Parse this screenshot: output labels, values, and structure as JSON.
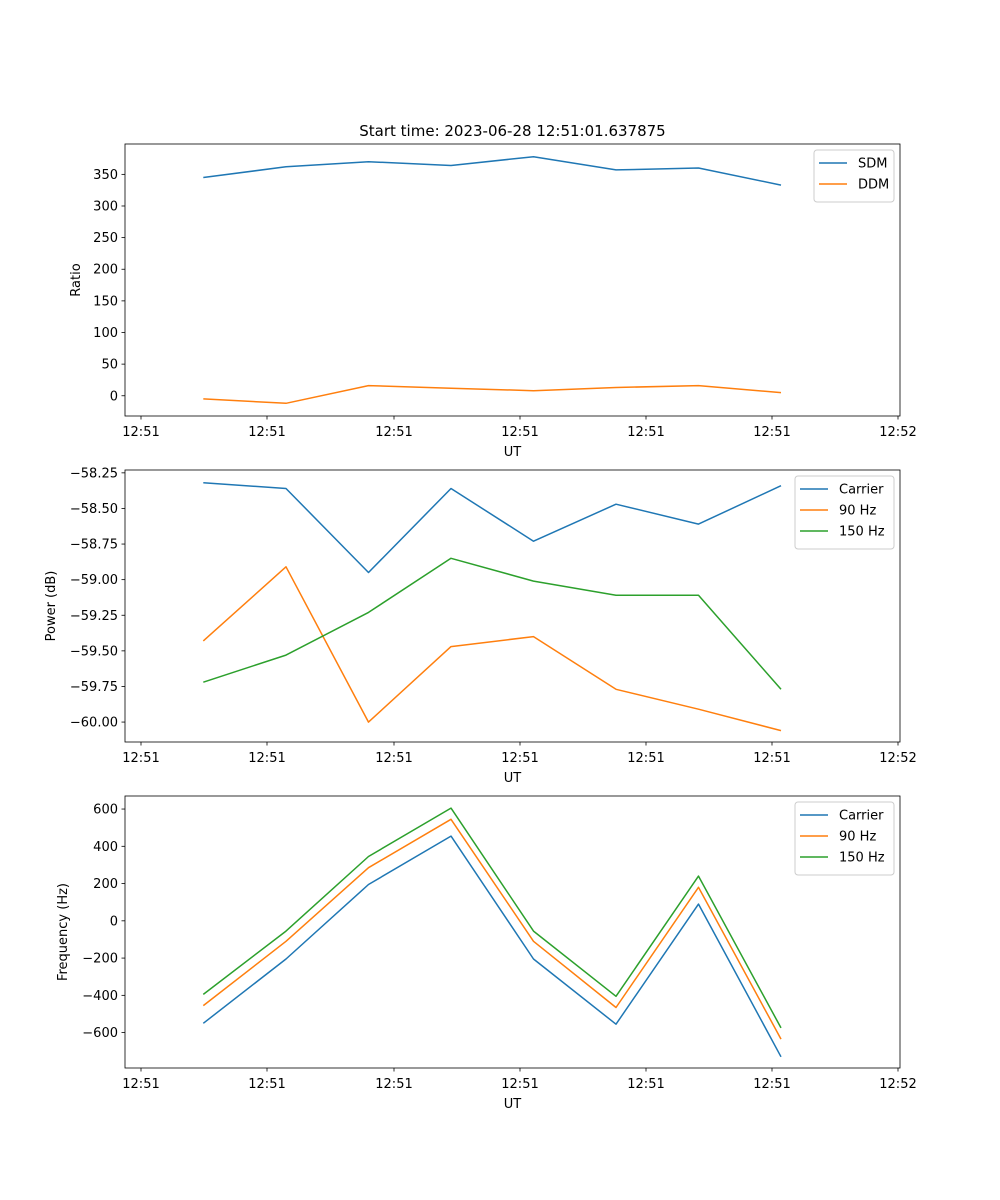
{
  "figure": {
    "title": "Start time: 2023-06-28 12:51:01.637875"
  },
  "chart_data": [
    {
      "type": "line",
      "xlabel": "UT",
      "ylabel": "Ratio",
      "x_tick_labels": [
        "12:51",
        "12:51",
        "12:51",
        "12:51",
        "12:51",
        "12:51",
        "12:52"
      ],
      "y_ticks": [
        0,
        50,
        100,
        150,
        200,
        250,
        300,
        350
      ],
      "y_tick_labels": [
        "0",
        "50",
        "100",
        "150",
        "200",
        "250",
        "300",
        "350"
      ],
      "ylim": [
        -32,
        398
      ],
      "legend_position": "top-right",
      "grid": false,
      "series": [
        {
          "name": "SDM",
          "color": "#1f77b4",
          "values": [
            345,
            362,
            370,
            364,
            378,
            357,
            360,
            333
          ]
        },
        {
          "name": "DDM",
          "color": "#ff7f0e",
          "values": [
            -5,
            -12,
            16,
            12,
            8,
            13,
            16,
            5
          ]
        }
      ]
    },
    {
      "type": "line",
      "xlabel": "UT",
      "ylabel": "Power (dB)",
      "x_tick_labels": [
        "12:51",
        "12:51",
        "12:51",
        "12:51",
        "12:51",
        "12:51",
        "12:52"
      ],
      "y_ticks": [
        -60.0,
        -59.75,
        -59.5,
        -59.25,
        -59.0,
        -58.75,
        -58.5,
        -58.25
      ],
      "y_tick_labels": [
        "−60.00",
        "−59.75",
        "−59.50",
        "−59.25",
        "−59.00",
        "−58.75",
        "−58.50",
        "−58.25"
      ],
      "ylim": [
        -60.14,
        -58.23
      ],
      "legend_position": "top-right",
      "grid": false,
      "series": [
        {
          "name": "Carrier",
          "color": "#1f77b4",
          "values": [
            -58.32,
            -58.36,
            -58.95,
            -58.36,
            -58.73,
            -58.47,
            -58.61,
            -58.34
          ]
        },
        {
          "name": "90 Hz",
          "color": "#ff7f0e",
          "values": [
            -59.43,
            -58.91,
            -60.0,
            -59.47,
            -59.4,
            -59.77,
            -59.91,
            -60.06
          ]
        },
        {
          "name": "150 Hz",
          "color": "#2ca02c",
          "values": [
            -59.72,
            -59.53,
            -59.23,
            -58.85,
            -59.01,
            -59.11,
            -59.11,
            -59.77
          ]
        }
      ]
    },
    {
      "type": "line",
      "xlabel": "UT",
      "ylabel": "Frequency (Hz)",
      "x_tick_labels": [
        "12:51",
        "12:51",
        "12:51",
        "12:51",
        "12:51",
        "12:51",
        "12:52"
      ],
      "y_ticks": [
        -600,
        -400,
        -200,
        0,
        200,
        400,
        600
      ],
      "y_tick_labels": [
        "−600",
        "−400",
        "−200",
        "0",
        "200",
        "400",
        "600"
      ],
      "ylim": [
        -790,
        670
      ],
      "legend_position": "top-right",
      "grid": false,
      "series": [
        {
          "name": "Carrier",
          "color": "#1f77b4",
          "values": [
            -550,
            -205,
            195,
            455,
            -205,
            -555,
            90,
            -730
          ]
        },
        {
          "name": "90 Hz",
          "color": "#ff7f0e",
          "values": [
            -455,
            -110,
            285,
            545,
            -110,
            -465,
            180,
            -635
          ]
        },
        {
          "name": "150 Hz",
          "color": "#2ca02c",
          "values": [
            -395,
            -55,
            345,
            605,
            -55,
            -405,
            240,
            -575
          ]
        }
      ]
    }
  ]
}
